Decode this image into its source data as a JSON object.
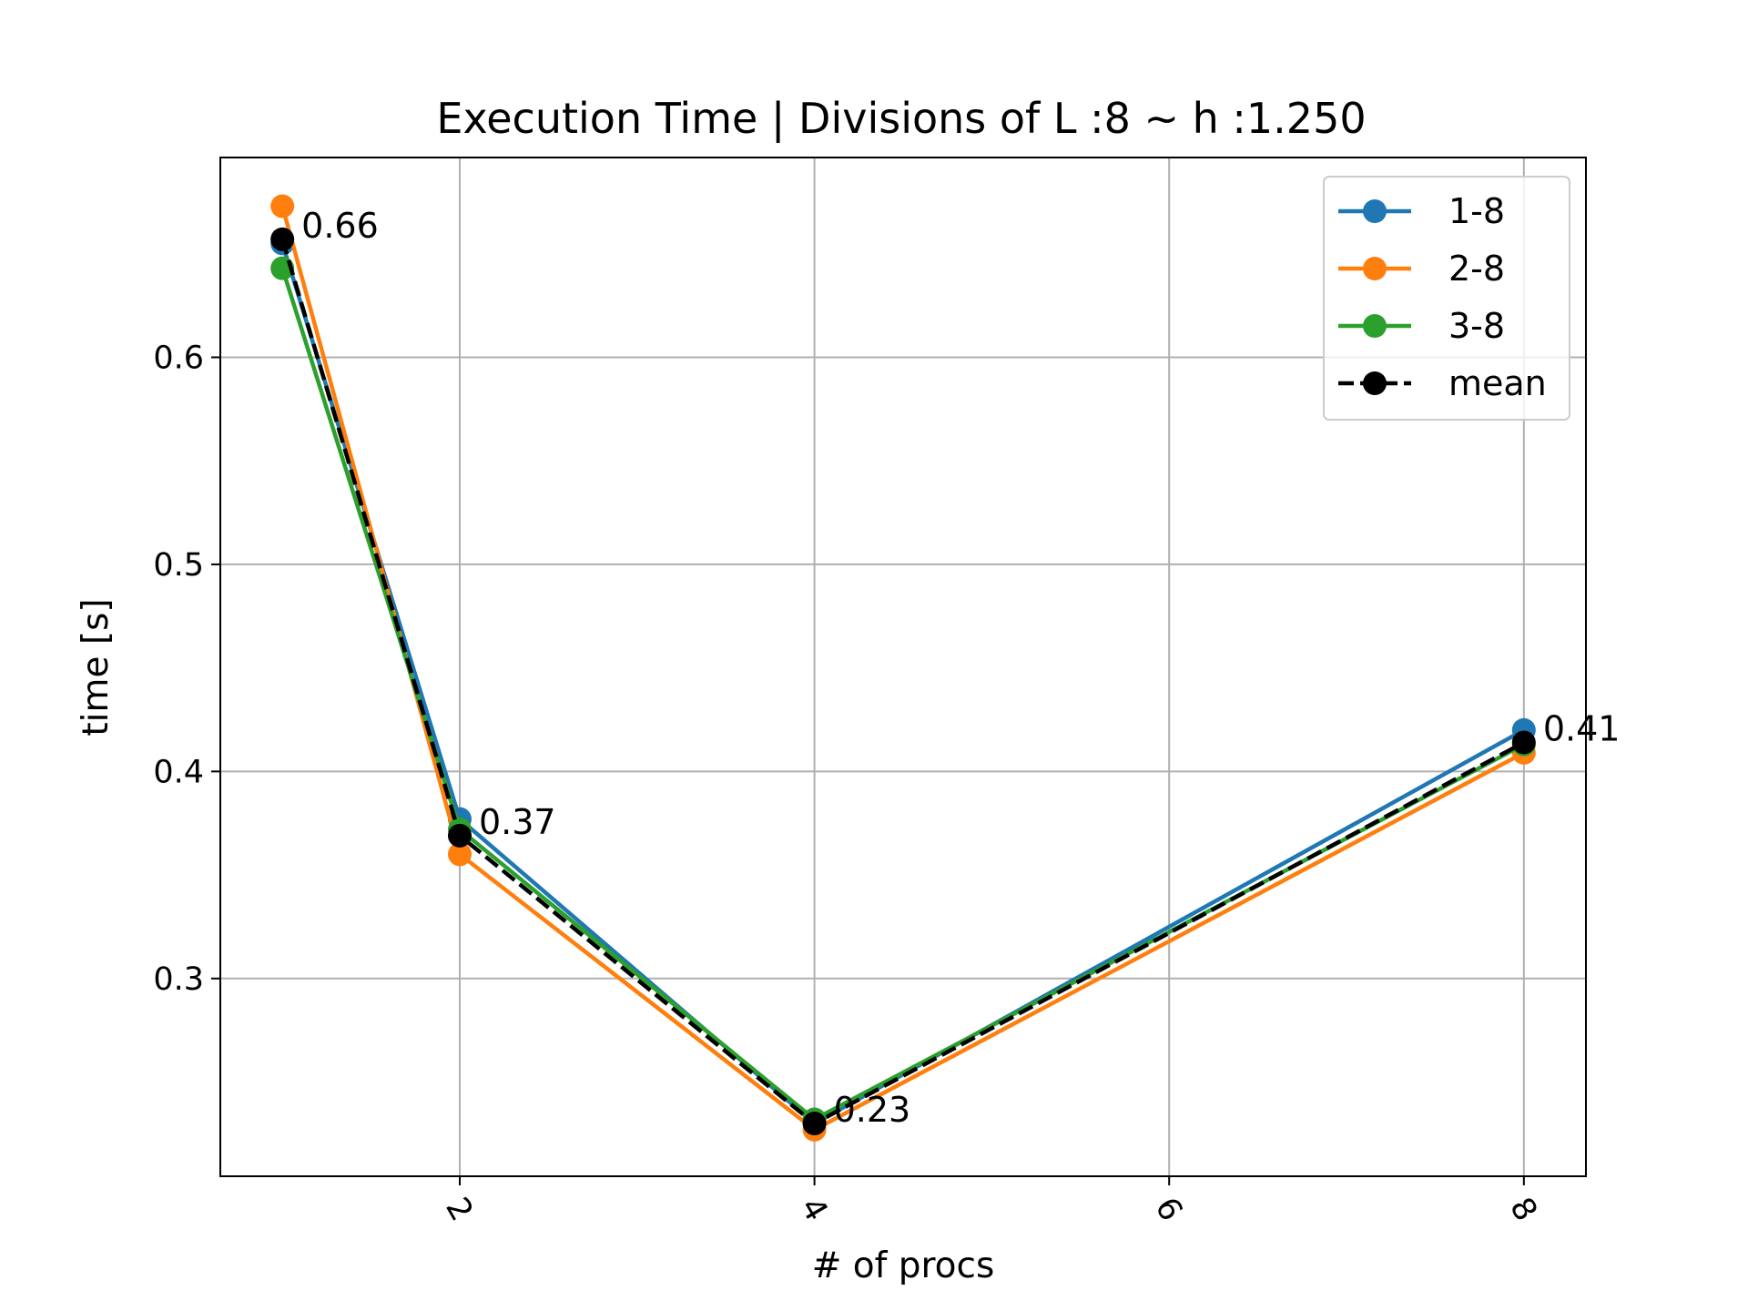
{
  "chart_data": {
    "type": "line",
    "title": "Execution Time | Divisions of L :8 ~ h :1.250",
    "xlabel": "# of procs",
    "ylabel": "time [s]",
    "xlim": [
      0.65,
      8.35
    ],
    "ylim": [
      0.2045,
      0.6965
    ],
    "xticks": [
      2,
      4,
      6,
      8
    ],
    "xtick_labels": [
      "2",
      "4",
      "6",
      "8"
    ],
    "xtick_rotation": 60,
    "yticks": [
      0.3,
      0.4,
      0.5,
      0.6
    ],
    "ytick_labels": [
      "0.3",
      "0.4",
      "0.5",
      "0.6"
    ],
    "grid": true,
    "legend_position": "top-right",
    "x": [
      1,
      2,
      4,
      8
    ],
    "series": [
      {
        "name": "1-8",
        "values": [
          0.655,
          0.377,
          0.23,
          0.42
        ],
        "color": "#1f77b4",
        "style": "solid"
      },
      {
        "name": "2-8",
        "values": [
          0.673,
          0.36,
          0.227,
          0.409
        ],
        "color": "#ff7f0e",
        "style": "solid"
      },
      {
        "name": "3-8",
        "values": [
          0.643,
          0.372,
          0.232,
          0.413
        ],
        "color": "#2ca02c",
        "style": "solid"
      },
      {
        "name": "mean",
        "values": [
          0.657,
          0.369,
          0.23,
          0.414
        ],
        "color": "#000000",
        "style": "dashed"
      }
    ],
    "annotations": [
      {
        "x": 1,
        "y": 0.657,
        "text": "0.66"
      },
      {
        "x": 2,
        "y": 0.369,
        "text": "0.37"
      },
      {
        "x": 4,
        "y": 0.23,
        "text": "0.23"
      },
      {
        "x": 8,
        "y": 0.414,
        "text": "0.41"
      }
    ]
  }
}
